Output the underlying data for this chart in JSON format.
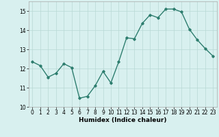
{
  "x": [
    0,
    1,
    2,
    3,
    4,
    5,
    6,
    7,
    8,
    9,
    10,
    11,
    12,
    13,
    14,
    15,
    16,
    17,
    18,
    19,
    20,
    21,
    22,
    23
  ],
  "y": [
    12.35,
    12.15,
    11.55,
    11.75,
    12.25,
    12.05,
    10.45,
    10.55,
    11.1,
    11.85,
    11.25,
    12.35,
    13.6,
    13.55,
    14.35,
    14.8,
    14.65,
    15.1,
    15.1,
    14.95,
    14.05,
    13.5,
    13.05,
    12.65
  ],
  "xlabel": "Humidex (Indice chaleur)",
  "xlim": [
    -0.5,
    23.5
  ],
  "ylim": [
    10,
    15.5
  ],
  "yticks": [
    10,
    11,
    12,
    13,
    14,
    15
  ],
  "xticks": [
    0,
    1,
    2,
    3,
    4,
    5,
    6,
    7,
    8,
    9,
    10,
    11,
    12,
    13,
    14,
    15,
    16,
    17,
    18,
    19,
    20,
    21,
    22,
    23
  ],
  "line_color": "#2d7d6e",
  "marker": "D",
  "marker_size": 1.8,
  "bg_color": "#d8f0ef",
  "grid_color": "#b8d8d4",
  "line_width": 1.0,
  "tick_fontsize": 5.5,
  "xlabel_fontsize": 6.5
}
